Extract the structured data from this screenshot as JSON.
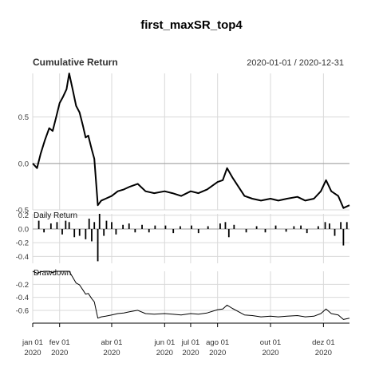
{
  "chart_data": {
    "type": "line",
    "title": "first_maxSR_top4",
    "date_range": "2020-01-01 / 2020-12-31",
    "x_ticks": [
      {
        "date": "2020-01-01",
        "label1": "jan 01",
        "label2": "2020"
      },
      {
        "date": "2020-02-01",
        "label1": "fev 01",
        "label2": "2020"
      },
      {
        "date": "2020-04-01",
        "label1": "abr 01",
        "label2": "2020"
      },
      {
        "date": "2020-06-01",
        "label1": "jun 01",
        "label2": "2020"
      },
      {
        "date": "2020-07-01",
        "label1": "jul 01",
        "label2": "2020"
      },
      {
        "date": "2020-08-01",
        "label1": "ago 01",
        "label2": "2020"
      },
      {
        "date": "2020-10-01",
        "label1": "out 01",
        "label2": "2020"
      },
      {
        "date": "2020-12-01",
        "label1": "dez 01",
        "label2": "2020"
      }
    ],
    "panels": [
      {
        "name": "Cumulative Return",
        "type": "line",
        "ylim": [
          -0.5,
          0.97
        ],
        "yticks": [
          0.5,
          0.0,
          -0.5
        ],
        "ytick_labels": [
          "0.5",
          "0.0",
          "-0.5"
        ],
        "baseline": 0.0,
        "x": [
          "2020-01-01",
          "2020-01-06",
          "2020-01-10",
          "2020-01-15",
          "2020-01-20",
          "2020-01-24",
          "2020-01-28",
          "2020-02-01",
          "2020-02-05",
          "2020-02-09",
          "2020-02-12",
          "2020-02-16",
          "2020-02-20",
          "2020-02-24",
          "2020-02-28",
          "2020-03-02",
          "2020-03-05",
          "2020-03-09",
          "2020-03-12",
          "2020-03-16",
          "2020-03-20",
          "2020-03-25",
          "2020-04-01",
          "2020-04-08",
          "2020-04-15",
          "2020-04-22",
          "2020-05-01",
          "2020-05-10",
          "2020-05-20",
          "2020-06-01",
          "2020-06-10",
          "2020-06-20",
          "2020-07-01",
          "2020-07-10",
          "2020-07-20",
          "2020-08-01",
          "2020-08-07",
          "2020-08-12",
          "2020-08-18",
          "2020-08-25",
          "2020-09-01",
          "2020-09-10",
          "2020-09-20",
          "2020-10-01",
          "2020-10-10",
          "2020-10-20",
          "2020-11-01",
          "2020-11-10",
          "2020-11-20",
          "2020-11-28",
          "2020-12-04",
          "2020-12-10",
          "2020-12-18",
          "2020-12-24",
          "2020-12-31"
        ],
        "y": [
          0.0,
          -0.05,
          0.1,
          0.25,
          0.38,
          0.35,
          0.5,
          0.65,
          0.72,
          0.8,
          0.97,
          0.8,
          0.62,
          0.55,
          0.4,
          0.28,
          0.3,
          0.15,
          0.05,
          -0.45,
          -0.4,
          -0.38,
          -0.35,
          -0.3,
          -0.28,
          -0.25,
          -0.22,
          -0.3,
          -0.32,
          -0.3,
          -0.32,
          -0.35,
          -0.3,
          -0.32,
          -0.28,
          -0.2,
          -0.18,
          -0.05,
          -0.15,
          -0.25,
          -0.35,
          -0.38,
          -0.4,
          -0.38,
          -0.4,
          -0.38,
          -0.36,
          -0.4,
          -0.38,
          -0.3,
          -0.18,
          -0.3,
          -0.35,
          -0.48,
          -0.45
        ]
      },
      {
        "name": "Daily Return",
        "type": "bar",
        "ylim": [
          -0.5,
          0.22
        ],
        "yticks": [
          0.2,
          0.0,
          -0.2,
          -0.4
        ],
        "ytick_labels": [
          "0.2",
          "0.0",
          "-0.2",
          "-0.4"
        ],
        "baseline": 0.0,
        "x": [
          "2020-01-08",
          "2020-01-14",
          "2020-01-22",
          "2020-01-29",
          "2020-02-04",
          "2020-02-08",
          "2020-02-12",
          "2020-02-18",
          "2020-02-24",
          "2020-03-02",
          "2020-03-06",
          "2020-03-09",
          "2020-03-12",
          "2020-03-16",
          "2020-03-18",
          "2020-03-23",
          "2020-03-26",
          "2020-04-01",
          "2020-04-06",
          "2020-04-14",
          "2020-04-21",
          "2020-04-28",
          "2020-05-06",
          "2020-05-14",
          "2020-05-21",
          "2020-06-02",
          "2020-06-11",
          "2020-06-19",
          "2020-07-02",
          "2020-07-10",
          "2020-07-21",
          "2020-08-04",
          "2020-08-10",
          "2020-08-14",
          "2020-08-20",
          "2020-09-03",
          "2020-09-15",
          "2020-09-25",
          "2020-10-07",
          "2020-10-19",
          "2020-10-28",
          "2020-11-05",
          "2020-11-12",
          "2020-11-25",
          "2020-12-03",
          "2020-12-08",
          "2020-12-14",
          "2020-12-21",
          "2020-12-24",
          "2020-12-28"
        ],
        "y": [
          0.12,
          -0.05,
          0.08,
          0.1,
          -0.08,
          0.12,
          0.1,
          -0.12,
          -0.1,
          -0.15,
          0.15,
          -0.18,
          0.1,
          -0.47,
          0.22,
          -0.1,
          0.12,
          0.1,
          -0.08,
          0.06,
          0.08,
          -0.05,
          0.06,
          -0.05,
          0.05,
          0.05,
          -0.06,
          0.04,
          0.05,
          -0.06,
          0.04,
          0.08,
          0.1,
          -0.12,
          0.06,
          -0.05,
          0.04,
          -0.05,
          0.05,
          -0.04,
          0.04,
          0.05,
          -0.06,
          0.04,
          0.1,
          0.08,
          -0.1,
          0.1,
          -0.24,
          0.1
        ]
      },
      {
        "name": "Drawdown",
        "type": "line",
        "ylim": [
          -0.76,
          0.0
        ],
        "yticks": [
          -0.2,
          -0.4,
          -0.6
        ],
        "ytick_labels": [
          "-0.2",
          "-0.4",
          "-0.6"
        ],
        "x": [
          "2020-01-01",
          "2020-01-06",
          "2020-01-10",
          "2020-01-15",
          "2020-01-20",
          "2020-01-24",
          "2020-01-28",
          "2020-02-01",
          "2020-02-05",
          "2020-02-09",
          "2020-02-12",
          "2020-02-16",
          "2020-02-20",
          "2020-02-24",
          "2020-02-28",
          "2020-03-02",
          "2020-03-05",
          "2020-03-09",
          "2020-03-12",
          "2020-03-16",
          "2020-03-20",
          "2020-03-25",
          "2020-04-01",
          "2020-04-08",
          "2020-04-15",
          "2020-04-22",
          "2020-05-01",
          "2020-05-10",
          "2020-05-20",
          "2020-06-01",
          "2020-06-10",
          "2020-06-20",
          "2020-07-01",
          "2020-07-10",
          "2020-07-20",
          "2020-08-01",
          "2020-08-07",
          "2020-08-12",
          "2020-08-18",
          "2020-08-25",
          "2020-09-01",
          "2020-09-10",
          "2020-09-20",
          "2020-10-01",
          "2020-10-10",
          "2020-10-20",
          "2020-11-01",
          "2020-11-10",
          "2020-11-20",
          "2020-11-28",
          "2020-12-04",
          "2020-12-10",
          "2020-12-18",
          "2020-12-24",
          "2020-12-31"
        ],
        "y": [
          0.0,
          -0.03,
          -0.01,
          0.0,
          0.0,
          -0.02,
          0.0,
          0.0,
          0.0,
          0.0,
          0.0,
          -0.09,
          -0.18,
          -0.21,
          -0.29,
          -0.35,
          -0.34,
          -0.42,
          -0.47,
          -0.72,
          -0.7,
          -0.69,
          -0.67,
          -0.65,
          -0.64,
          -0.62,
          -0.6,
          -0.65,
          -0.66,
          -0.65,
          -0.66,
          -0.67,
          -0.65,
          -0.66,
          -0.64,
          -0.59,
          -0.58,
          -0.52,
          -0.57,
          -0.62,
          -0.67,
          -0.68,
          -0.7,
          -0.69,
          -0.7,
          -0.69,
          -0.68,
          -0.7,
          -0.69,
          -0.65,
          -0.58,
          -0.65,
          -0.67,
          -0.74,
          -0.72
        ]
      }
    ]
  }
}
